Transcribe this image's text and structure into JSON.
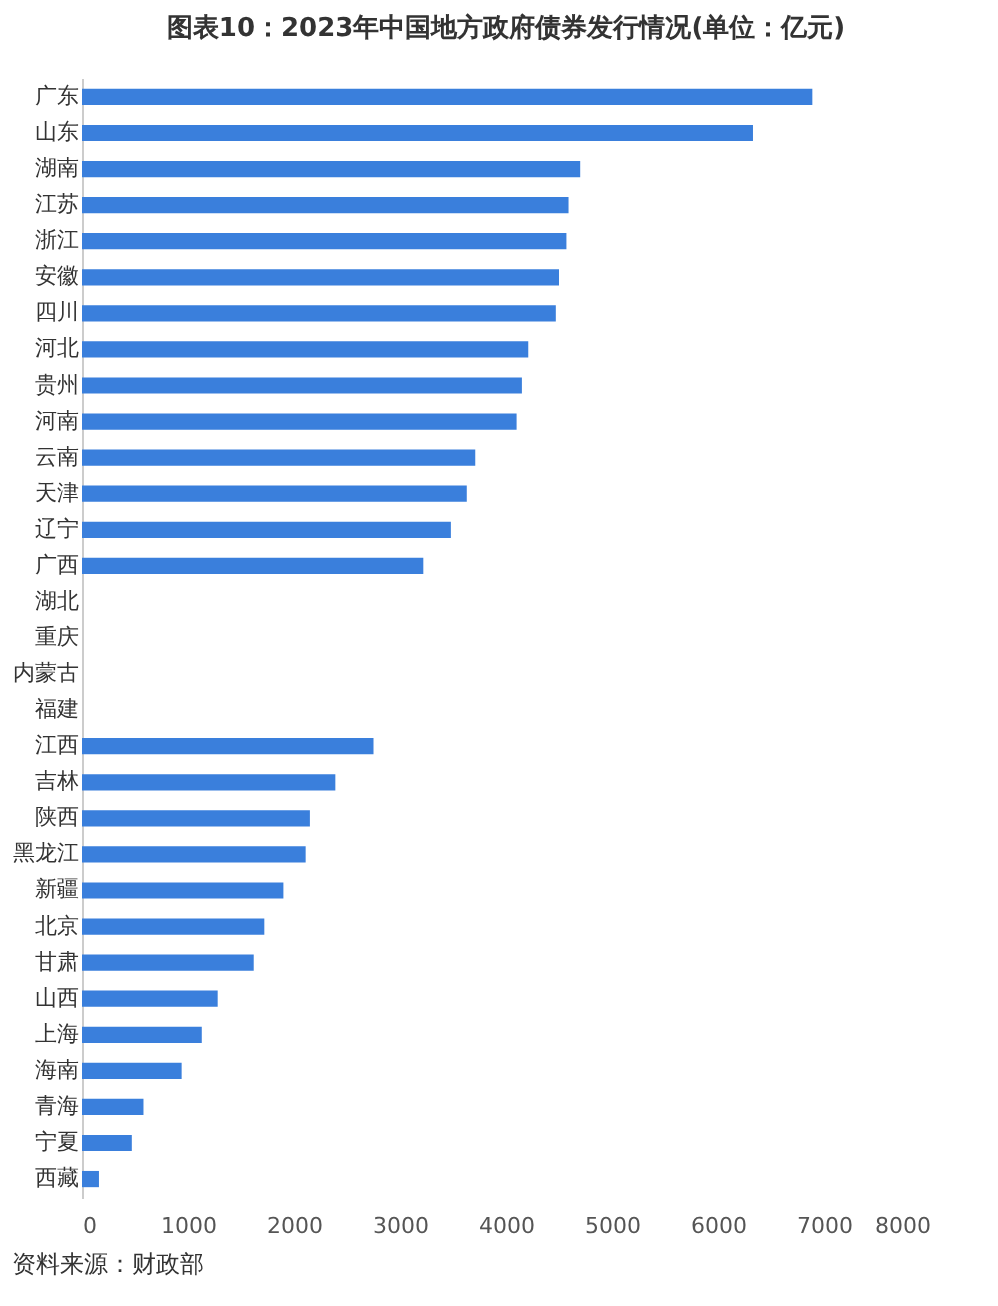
{
  "chart_data": {
    "type": "bar",
    "orientation": "horizontal",
    "title": "图表10：2023年中国地方政府债券发行情况(单位：亿元)",
    "categories": [
      "广东",
      "山东",
      "湖南",
      "江苏",
      "浙江",
      "安徽",
      "四川",
      "河北",
      "贵州",
      "河南",
      "云南",
      "天津",
      "辽宁",
      "广西",
      "湖北",
      "重庆",
      "内蒙古",
      "福建",
      "江西",
      "吉林",
      "陕西",
      "黑龙江",
      "新疆",
      "北京",
      "甘肃",
      "山西",
      "上海",
      "海南",
      "青海",
      "宁夏",
      "西藏"
    ],
    "values": [
      6890,
      6330,
      4700,
      4590,
      4570,
      4500,
      4470,
      4210,
      4150,
      4100,
      3710,
      3630,
      3480,
      3220,
      null,
      null,
      null,
      null,
      2750,
      2390,
      2150,
      2110,
      1900,
      1720,
      1620,
      1280,
      1130,
      940,
      580,
      470,
      160
    ],
    "color": "#3a7fdc",
    "xlim": [
      0,
      8000
    ],
    "xticks": [
      0,
      1000,
      2000,
      3000,
      4000,
      5000,
      6000,
      7000,
      8000
    ],
    "grid": false,
    "annotations": [
      "资料来源：财政部"
    ]
  }
}
